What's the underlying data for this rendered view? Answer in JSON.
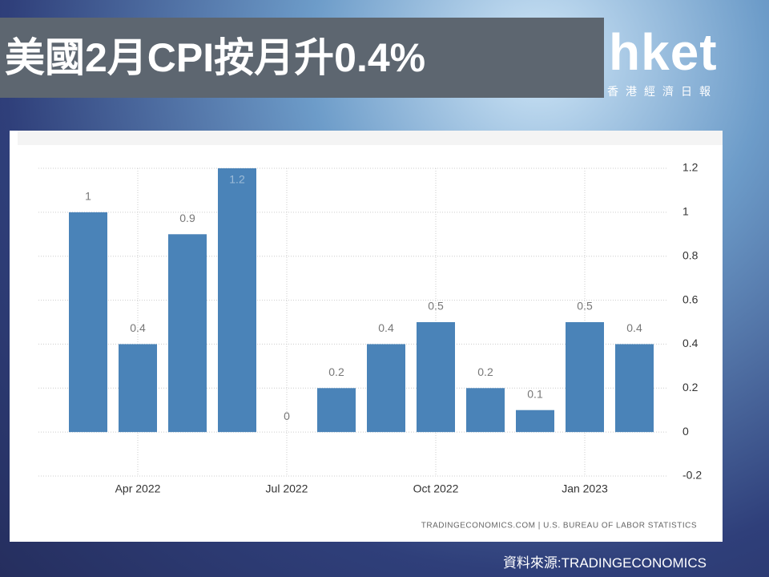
{
  "header": {
    "title": "美國2月CPI按月升0.4%",
    "logo": "hket",
    "logo_sub": "香港經濟日報"
  },
  "chart_data": {
    "type": "bar",
    "categories": [
      null,
      "Apr 2022",
      null,
      null,
      "Jul 2022",
      null,
      null,
      "Oct 2022",
      null,
      null,
      "Jan 2023",
      null
    ],
    "values": [
      1,
      0.4,
      0.9,
      1.2,
      0,
      0.2,
      0.4,
      0.5,
      0.2,
      0.1,
      0.5,
      0.4
    ],
    "color": "#4a83b8",
    "ylim": [
      -0.2,
      1.2
    ],
    "yticks": [
      1.2,
      1,
      0.8,
      0.6,
      0.4,
      0.2,
      0,
      -0.2
    ],
    "grid": true,
    "source": "TRADINGECONOMICS.COM | U.S. BUREAU OF LABOR STATISTICS"
  },
  "footer": {
    "text": "資料來源:TRADINGECONOMICS"
  }
}
